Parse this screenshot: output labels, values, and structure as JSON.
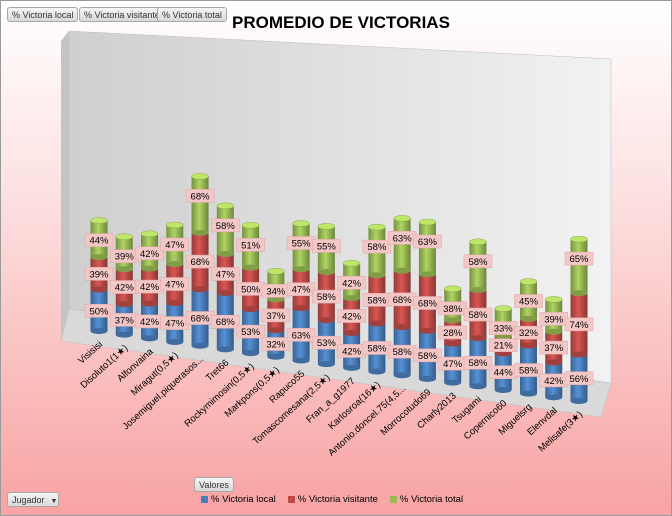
{
  "filters": {
    "buttons": [
      "% Victoria local",
      "% Victoria visitante",
      "% Victoria total"
    ],
    "values_label": "Valores",
    "row_field": "Jugador"
  },
  "colors": {
    "local": "#4a7ebb",
    "visitante": "#be4b48",
    "total": "#98b954",
    "label_bg": "#f4c7c7"
  },
  "chart_data": {
    "type": "bar",
    "stacked": true,
    "three_d": true,
    "title": "PROMEDIO DE VICTORIAS",
    "categories": [
      "Visisisi",
      "Disoluto1(1★)",
      "Alfonvaina",
      "Miragut(0,5★)",
      "Josemiguel.piquerasos...",
      "Tret66",
      "Rockymimosin(0,5★)",
      "Markpons(0,5★)",
      "Rapuco55",
      "Tomascomesana(2,5★)",
      "Fran_a_g1977",
      "Karlosroa(16★)",
      "Antonio.doncel.75(4,5...",
      "Morrocotudo69",
      "Charly2013",
      "Tsugami",
      "Copernico60",
      "Miguelsrg",
      "Elenvdal",
      "Melisafe(3★)"
    ],
    "series": [
      {
        "name": "% Victoria local",
        "values": [
          50,
          37,
          42,
          47,
          68,
          68,
          53,
          32,
          63,
          53,
          42,
          58,
          58,
          58,
          47,
          58,
          44,
          58,
          42,
          56
        ]
      },
      {
        "name": "% Victoria visitante",
        "values": [
          39,
          42,
          42,
          47,
          68,
          47,
          50,
          37,
          47,
          58,
          42,
          58,
          68,
          68,
          28,
          58,
          21,
          32,
          37,
          74
        ]
      },
      {
        "name": "% Victoria total",
        "values": [
          44,
          39,
          42,
          47,
          68,
          58,
          51,
          34,
          55,
          55,
          42,
          58,
          63,
          63,
          38,
          58,
          33,
          45,
          39,
          65
        ]
      }
    ],
    "value_suffix": "%",
    "legend_position": "bottom",
    "grid": false
  }
}
